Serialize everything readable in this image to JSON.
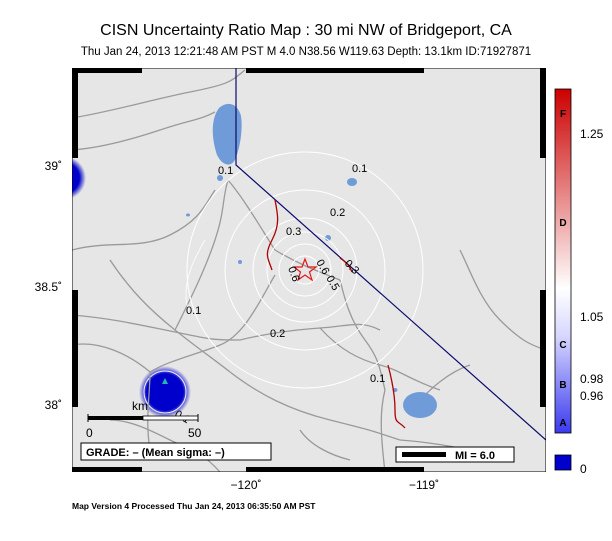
{
  "title": "CISN Uncertainty Ratio Map : 30 mi NW of Bridgeport, CA",
  "subtitle": "Thu Jan 24, 2013 12:21:48 AM PST    M 4.0    N38.56 W119.63    Depth: 13.1km    ID:71927871",
  "footer": "Map Version 4 Processed Thu Jan 24, 2013 06:35:50 AM PST",
  "lat_labels": [
    "39˚",
    "38.5˚",
    "38˚"
  ],
  "lon_labels": [
    "−120˚",
    "−119˚"
  ],
  "contour_labels": {
    "c1": "0.1",
    "c2": "0.2",
    "c3": "0.3",
    "c4": "0.1",
    "c5": "0.2",
    "c6": "0.6",
    "c7": "0.5",
    "c8": "0.6",
    "c9": "0.3",
    "c10": "0.1",
    "c11": "0.1",
    "c12": "0.1"
  },
  "scale_bar": {
    "zero": "0",
    "fifty": "50",
    "unit": "km"
  },
  "grade_box": "GRADE: – (Mean sigma: –)",
  "mi_legend": "MI = 6.0",
  "colorbar": {
    "labels": [
      "1.25",
      "1.05",
      "0.98",
      "0.96",
      "0"
    ],
    "letters": [
      "F",
      "D",
      "C",
      "B",
      "A"
    ],
    "colors": {
      "top": "#cc0000",
      "mid": "#ffffff",
      "bottom": "#0000cc"
    }
  },
  "colors": {
    "land": "#e6e6e6",
    "water": "#6f9bd8",
    "roads": "#9a9a9a",
    "contours": "#ffffff",
    "border": "#0a0a6e",
    "faults": "#b00000",
    "epicenter": "#e01a1a",
    "station_bubble": "#0000cc"
  }
}
